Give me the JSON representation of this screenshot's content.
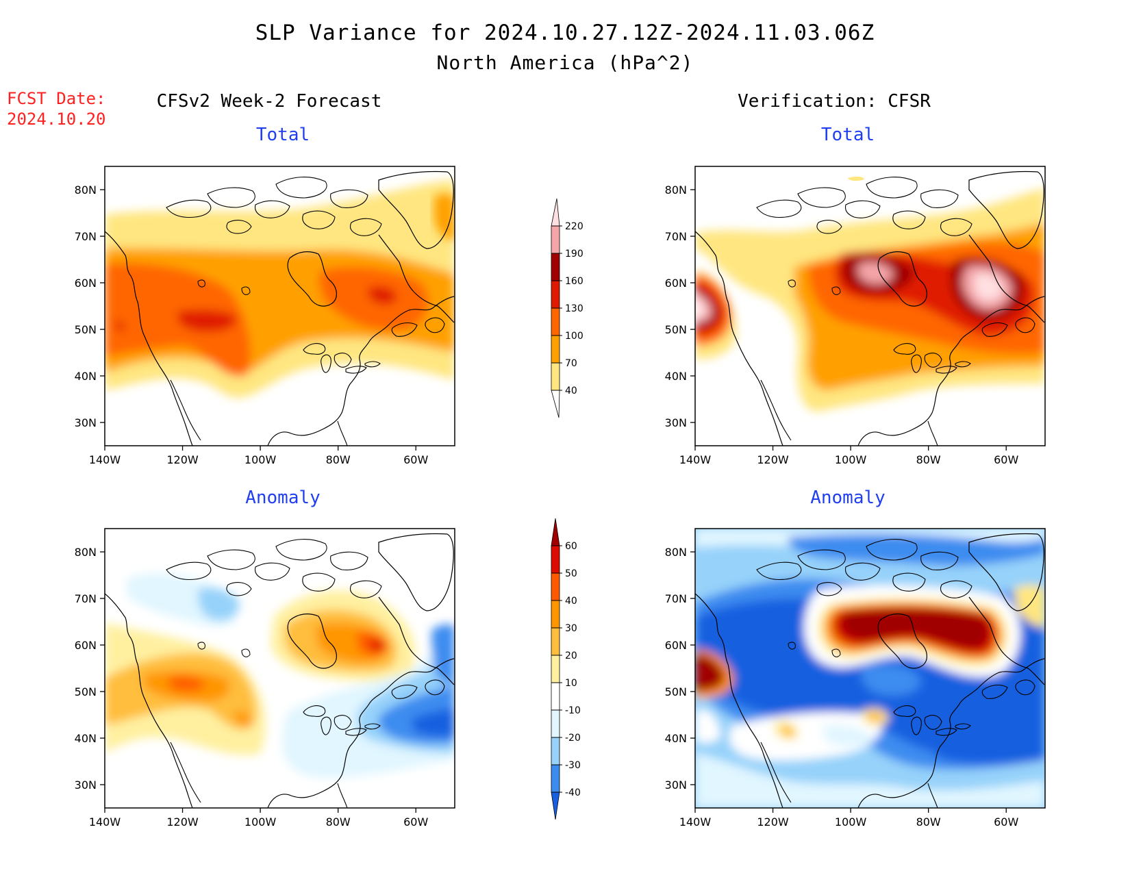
{
  "title": "SLP Variance for 2024.10.27.12Z-2024.11.03.06Z",
  "subtitle": "North America (hPa^2)",
  "fcst_date_label": "FCST Date:",
  "fcst_date_value": "2024.10.20",
  "columns": {
    "forecast": "CFSv2 Week-2 Forecast",
    "verification": "Verification: CFSR"
  },
  "panel_titles": {
    "total": "Total",
    "anomaly": "Anomaly"
  },
  "axes": {
    "lat_ticks": [
      "80N",
      "70N",
      "60N",
      "50N",
      "40N",
      "30N"
    ],
    "lon_ticks": [
      "140W",
      "120W",
      "100W",
      "80W",
      "60W"
    ]
  },
  "colorbars": {
    "total": {
      "levels": [
        "40",
        "70",
        "100",
        "130",
        "160",
        "190",
        "220"
      ],
      "colors": [
        "#ffe680",
        "#ffa000",
        "#ff6600",
        "#e01a00",
        "#a00000",
        "#f4a5a8",
        "#ffe0e2"
      ]
    },
    "anomaly": {
      "levels": [
        "-40",
        "-30",
        "-20",
        "-10",
        "10",
        "20",
        "30",
        "40",
        "50",
        "60"
      ],
      "colors": [
        "#1860e0",
        "#3c8cf0",
        "#96d2fa",
        "#e1f6ff",
        "#ffffff",
        "#fff0a0",
        "#ffbe3c",
        "#ff9600",
        "#ff5a00",
        "#dc0c00",
        "#a00000"
      ]
    }
  }
}
